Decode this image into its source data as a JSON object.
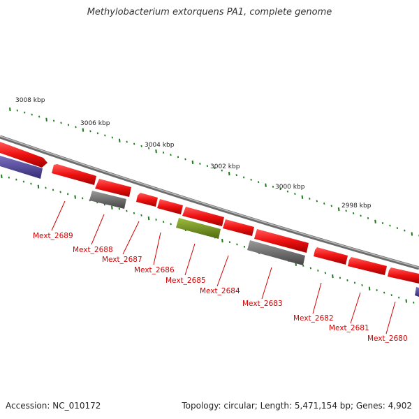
{
  "title": "Methylobacterium extorquens PA1, complete genome",
  "footer": {
    "accession": "Accession: NC_010172",
    "info": "Topology: circular; Length: 5,471,154 bp; Genes: 4,902"
  },
  "colors": {
    "forward_gene": "#ee1111",
    "reverse_gene_purple": "#4a3f8f",
    "gray_gene": "#6a6a6a",
    "olive_gene": "#6f8f1f",
    "backbone": "#8a8a8a",
    "ticks": "#1a7a1a",
    "label": "#d40000"
  },
  "scale_labels": [
    "3008 kbp",
    "3006 kbp",
    "3004 kbp",
    "3002 kbp",
    "3000 kbp",
    "2998 kbp"
  ],
  "genes": [
    "Mext_2689",
    "Mext_2688",
    "Mext_2687",
    "Mext_2686",
    "Mext_2685",
    "Mext_2684",
    "Mext_2683",
    "Mext_2682",
    "Mext_2681",
    "Mext_2680"
  ]
}
